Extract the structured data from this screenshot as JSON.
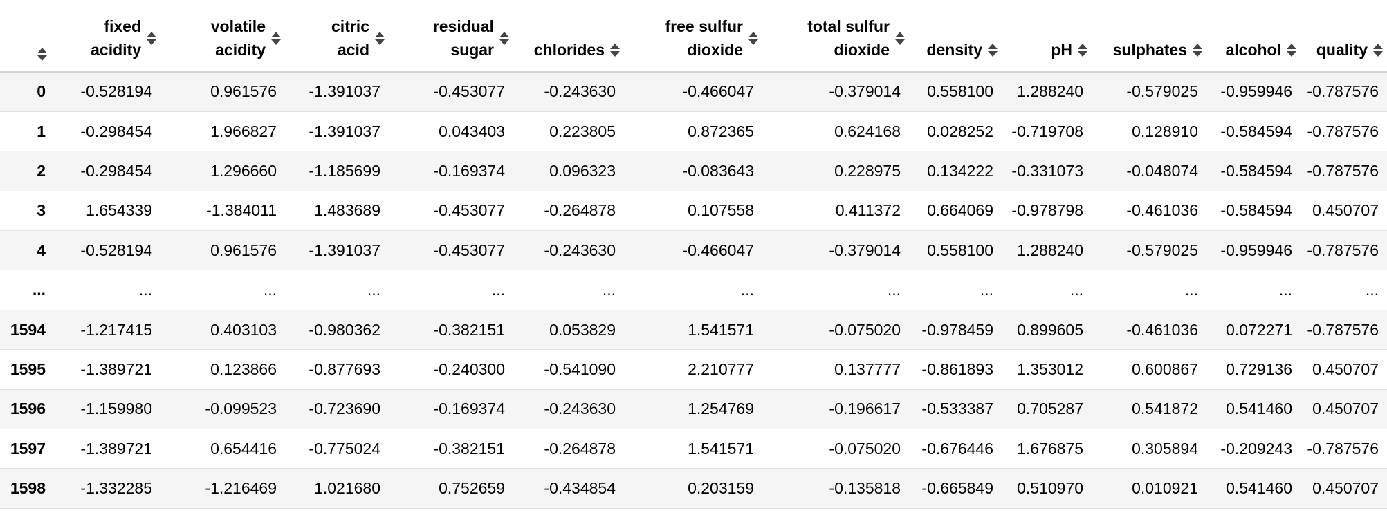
{
  "table": {
    "columns": [
      {
        "key": "index",
        "lines": []
      },
      {
        "key": "fixed_acidity",
        "lines": [
          "fixed",
          "acidity"
        ]
      },
      {
        "key": "volatile_acidity",
        "lines": [
          "volatile",
          "acidity"
        ]
      },
      {
        "key": "citric_acid",
        "lines": [
          "citric",
          "acid"
        ]
      },
      {
        "key": "residual_sugar",
        "lines": [
          "residual",
          "sugar"
        ]
      },
      {
        "key": "chlorides",
        "lines": [
          "chlorides"
        ]
      },
      {
        "key": "free_sulfur_dioxide",
        "lines": [
          "free sulfur",
          "dioxide"
        ]
      },
      {
        "key": "total_sulfur_dioxide",
        "lines": [
          "total sulfur",
          "dioxide"
        ]
      },
      {
        "key": "density",
        "lines": [
          "density"
        ]
      },
      {
        "key": "pH",
        "lines": [
          "pH"
        ]
      },
      {
        "key": "sulphates",
        "lines": [
          "sulphates"
        ]
      },
      {
        "key": "alcohol",
        "lines": [
          "alcohol"
        ]
      },
      {
        "key": "quality",
        "lines": [
          "quality"
        ]
      }
    ],
    "rows": [
      [
        "0",
        "-0.528194",
        "0.961576",
        "-1.391037",
        "-0.453077",
        "-0.243630",
        "-0.466047",
        "-0.379014",
        "0.558100",
        "1.288240",
        "-0.579025",
        "-0.959946",
        "-0.787576"
      ],
      [
        "1",
        "-0.298454",
        "1.966827",
        "-1.391037",
        "0.043403",
        "0.223805",
        "0.872365",
        "0.624168",
        "0.028252",
        "-0.719708",
        "0.128910",
        "-0.584594",
        "-0.787576"
      ],
      [
        "2",
        "-0.298454",
        "1.296660",
        "-1.185699",
        "-0.169374",
        "0.096323",
        "-0.083643",
        "0.228975",
        "0.134222",
        "-0.331073",
        "-0.048074",
        "-0.584594",
        "-0.787576"
      ],
      [
        "3",
        "1.654339",
        "-1.384011",
        "1.483689",
        "-0.453077",
        "-0.264878",
        "0.107558",
        "0.411372",
        "0.664069",
        "-0.978798",
        "-0.461036",
        "-0.584594",
        "0.450707"
      ],
      [
        "4",
        "-0.528194",
        "0.961576",
        "-1.391037",
        "-0.453077",
        "-0.243630",
        "-0.466047",
        "-0.379014",
        "0.558100",
        "1.288240",
        "-0.579025",
        "-0.959946",
        "-0.787576"
      ],
      [
        "...",
        "...",
        "...",
        "...",
        "...",
        "...",
        "...",
        "...",
        "...",
        "...",
        "...",
        "...",
        "..."
      ],
      [
        "1594",
        "-1.217415",
        "0.403103",
        "-0.980362",
        "-0.382151",
        "0.053829",
        "1.541571",
        "-0.075020",
        "-0.978459",
        "0.899605",
        "-0.461036",
        "0.072271",
        "-0.787576"
      ],
      [
        "1595",
        "-1.389721",
        "0.123866",
        "-0.877693",
        "-0.240300",
        "-0.541090",
        "2.210777",
        "0.137777",
        "-0.861893",
        "1.353012",
        "0.600867",
        "0.729136",
        "0.450707"
      ],
      [
        "1596",
        "-1.159980",
        "-0.099523",
        "-0.723690",
        "-0.169374",
        "-0.243630",
        "1.254769",
        "-0.196617",
        "-0.533387",
        "0.705287",
        "0.541872",
        "0.541460",
        "0.450707"
      ],
      [
        "1597",
        "-1.389721",
        "0.654416",
        "-0.775024",
        "-0.382151",
        "-0.264878",
        "1.541571",
        "-0.075020",
        "-0.676446",
        "1.676875",
        "0.305894",
        "-0.209243",
        "-0.787576"
      ],
      [
        "1598",
        "-1.332285",
        "-1.216469",
        "1.021680",
        "0.752659",
        "-0.434854",
        "0.203159",
        "-0.135818",
        "-0.665849",
        "0.510970",
        "0.010921",
        "0.541460",
        "0.450707"
      ]
    ]
  },
  "icons": {
    "sort": "sort-icon"
  },
  "colors": {
    "row_alt_bg": "#f5f5f5",
    "header_border": "#d4d4d4",
    "row_border": "#e2e2e2"
  }
}
